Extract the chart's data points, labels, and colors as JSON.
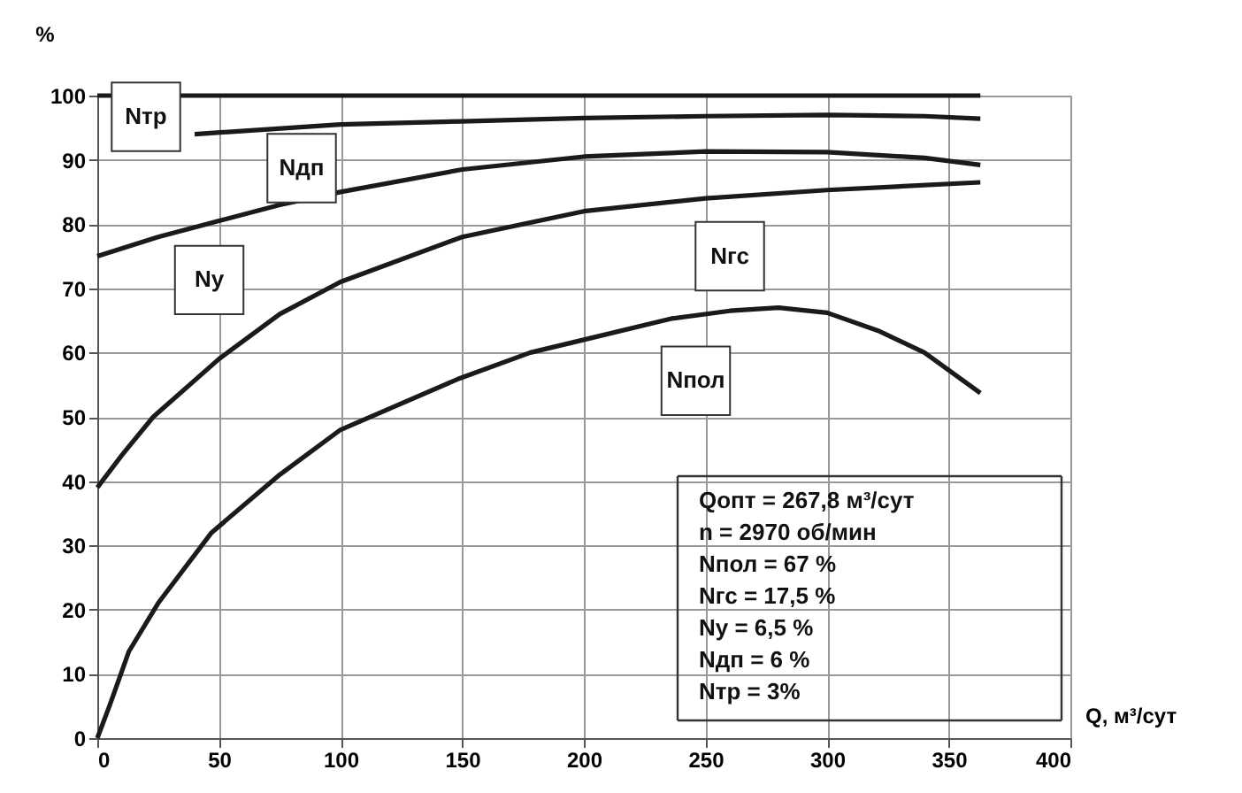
{
  "chart_data": {
    "type": "line",
    "xlabel": "Q, м³/сут",
    "ylabel": "%",
    "xlim": [
      0,
      400
    ],
    "ylim": [
      0,
      100
    ],
    "xticks": [
      0,
      50,
      100,
      150,
      200,
      250,
      300,
      350,
      400
    ],
    "yticks": [
      0,
      10,
      20,
      30,
      40,
      50,
      60,
      70,
      80,
      90,
      100
    ],
    "grid": true,
    "marker": "none",
    "line_style": "solid",
    "series": [
      {
        "color": "#1a1a1a",
        "x": [
          0,
          363
        ],
        "values": [
          100,
          100
        ]
      },
      {
        "color": "#1a1a1a",
        "x": [
          40,
          100,
          150,
          200,
          250,
          300,
          340,
          363
        ],
        "values": [
          94,
          95.5,
          96,
          96.5,
          96.8,
          97,
          96.8,
          96.4
        ]
      },
      {
        "color": "#1a1a1a",
        "x": [
          0,
          25,
          50,
          75,
          100,
          150,
          200,
          250,
          300,
          340,
          363
        ],
        "values": [
          75,
          78,
          80.5,
          83,
          85,
          88.5,
          90.5,
          91.3,
          91.2,
          90.3,
          89.2
        ]
      },
      {
        "color": "#1a1a1a",
        "x": [
          0,
          10,
          23,
          50,
          75,
          100,
          150,
          200,
          250,
          300,
          363
        ],
        "values": [
          39,
          44,
          50,
          59,
          66,
          71,
          78,
          82,
          84,
          85.3,
          86.5
        ]
      },
      {
        "color": "#1a1a1a",
        "x": [
          0,
          5,
          13,
          25,
          47,
          75,
          100,
          149,
          178,
          200,
          236,
          260,
          280,
          300,
          321,
          340,
          363
        ],
        "values": [
          0,
          5,
          13.5,
          21,
          32,
          41,
          48,
          56,
          60,
          62,
          65.3,
          66.5,
          67,
          66.2,
          63.4,
          60,
          53.7
        ]
      }
    ],
    "annotations": [
      {
        "text": "Nтр",
        "x": 20,
        "y": 96.7
      },
      {
        "text": "Nдп",
        "x": 84,
        "y": 88.7
      },
      {
        "text": "Nу",
        "x": 46,
        "y": 71.3
      },
      {
        "text": "Nгс",
        "x": 260,
        "y": 75
      },
      {
        "text": "Nпол",
        "x": 246,
        "y": 55.6
      },
      "Qопт  =  267,8 м³/сут",
      "n        = 2970 об/мин",
      "Nпол  = 67 %",
      "Nгс    = 17,5 %",
      "Nу      = 6,5 %",
      "Nдп   = 6 %",
      "Nтр   = 3%"
    ]
  }
}
